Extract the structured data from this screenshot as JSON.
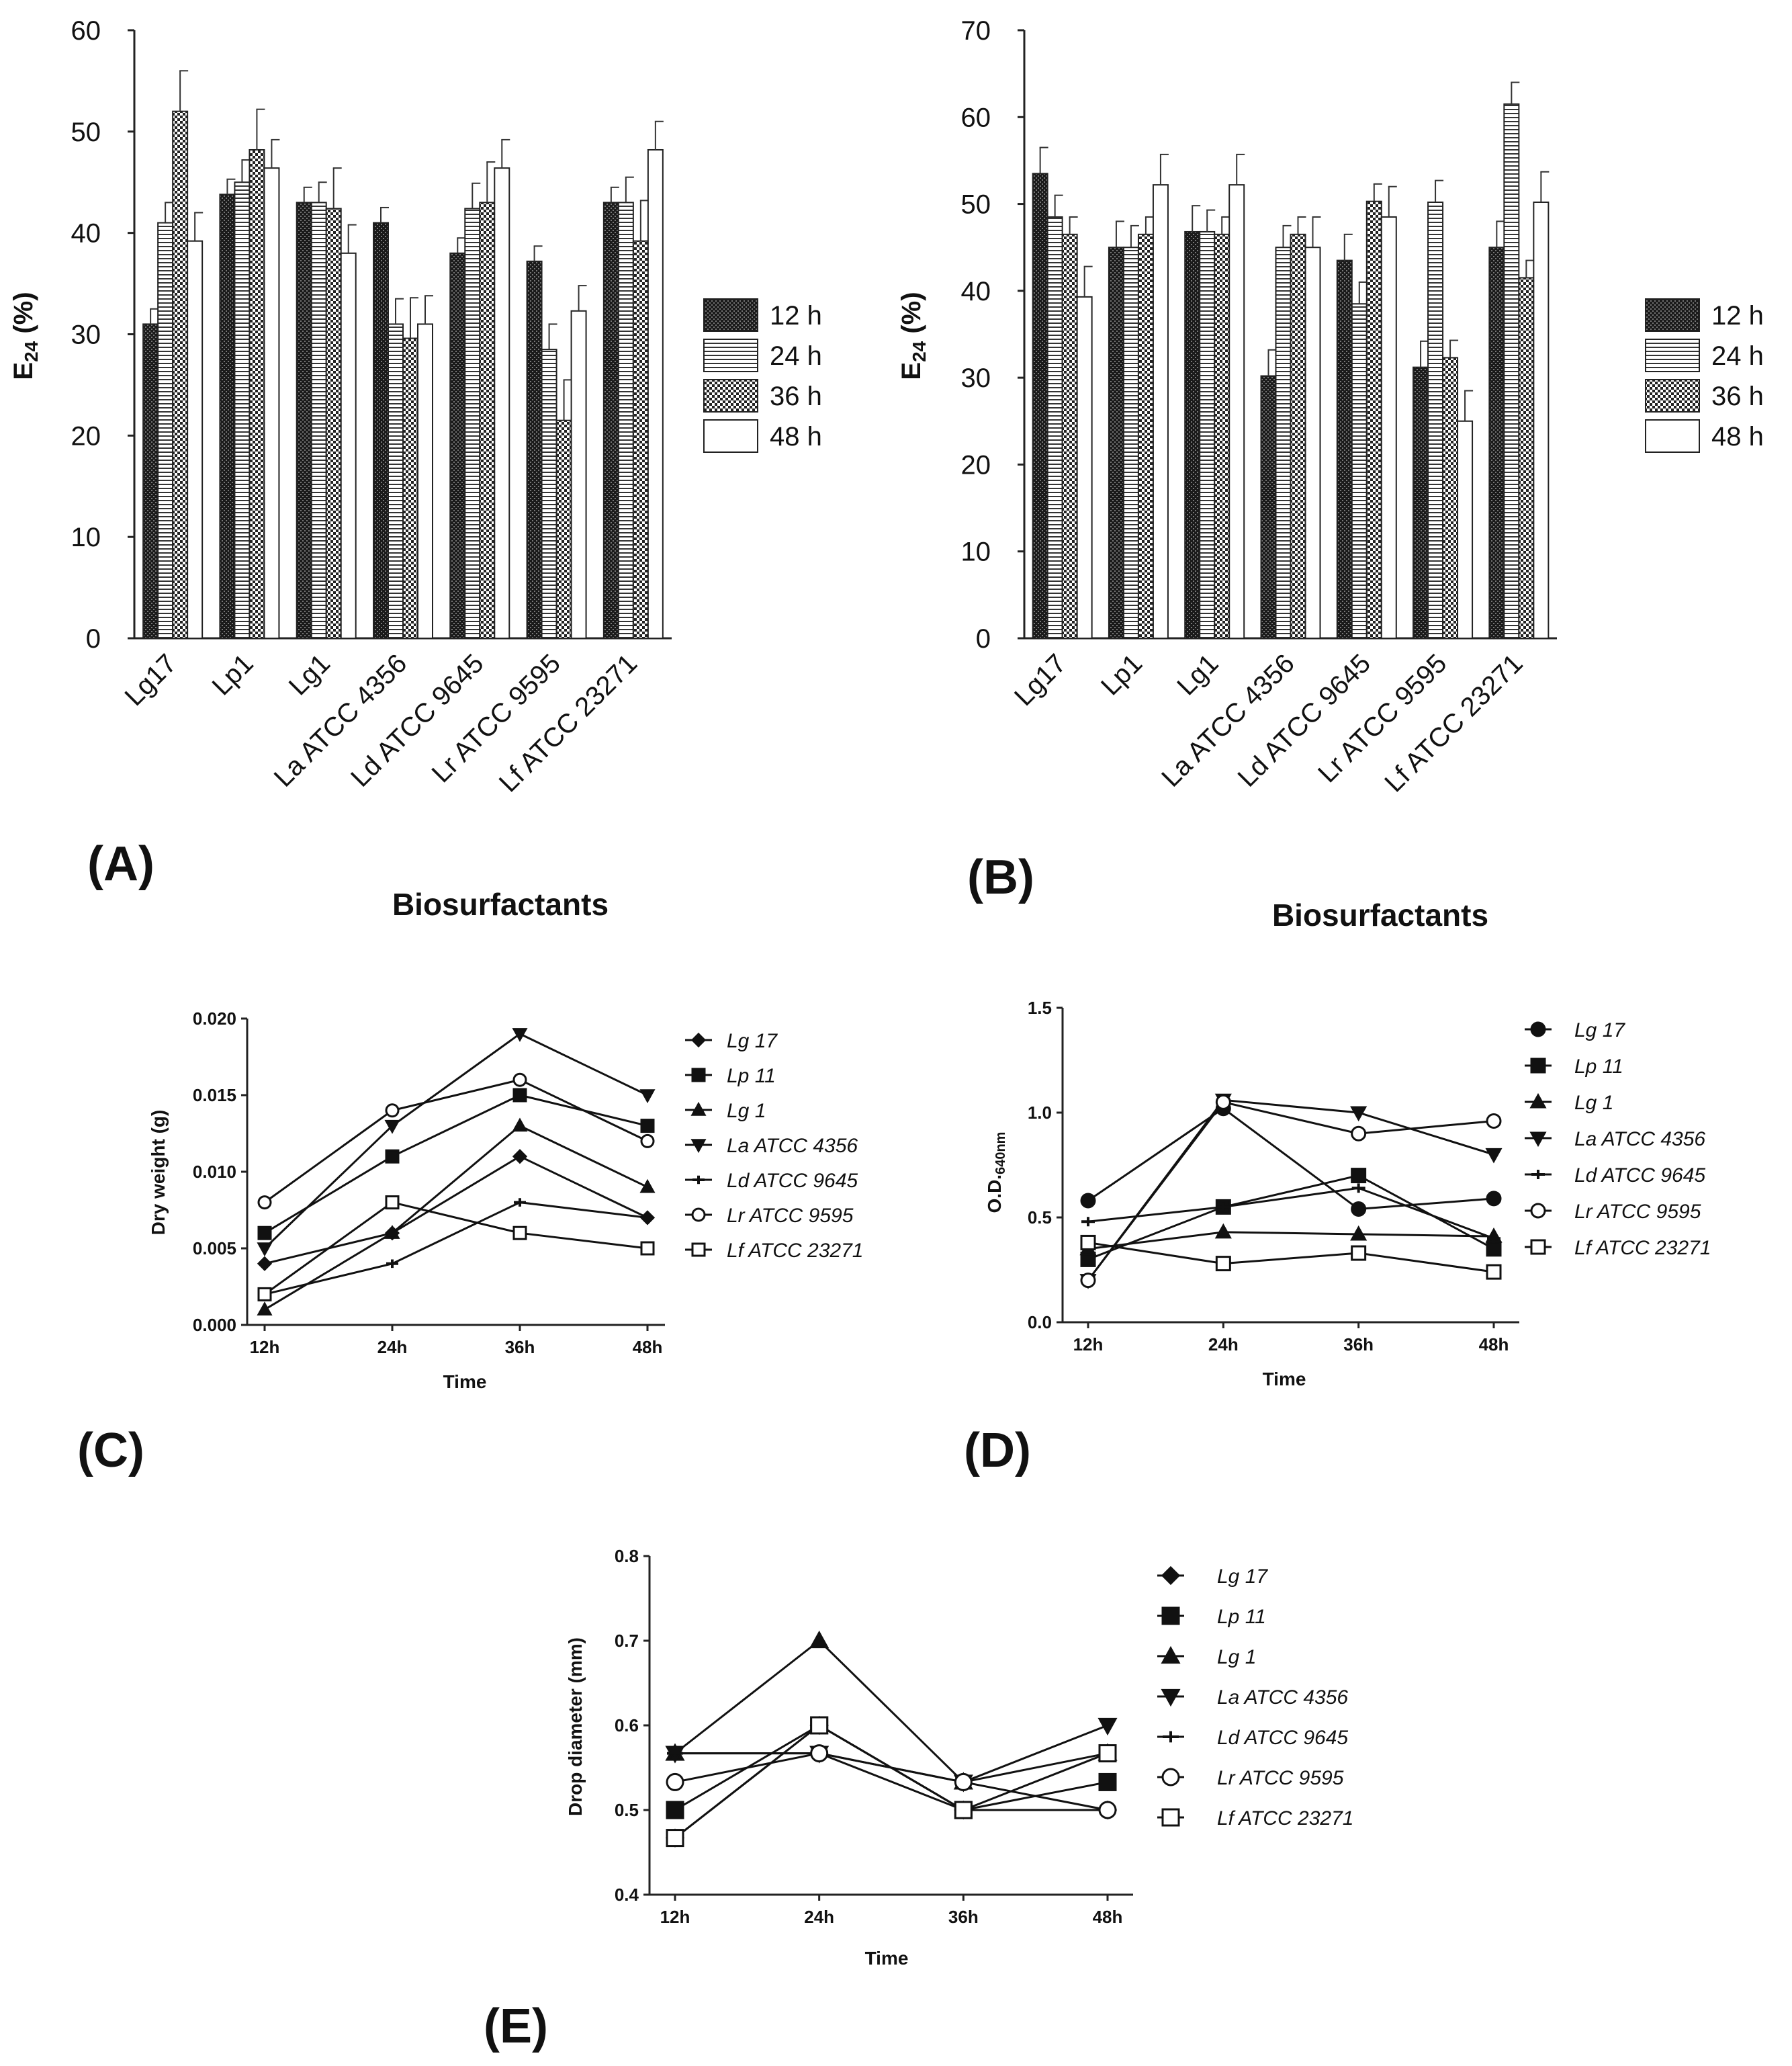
{
  "titles": {
    "c": "Biosurfactants",
    "d": "Biosurfactants"
  },
  "chart_data": [
    {
      "panel": "A",
      "type": "bar",
      "label": "(A)",
      "ylabel": "E24 (%)",
      "ylim": [
        0,
        60
      ],
      "yticks": [
        0,
        10,
        20,
        30,
        40,
        50,
        60
      ],
      "categories": [
        "Lg17",
        "Lp1",
        "Lg1",
        "La ATCC 4356",
        "Ld ATCC 9645",
        "Lr ATCC 9595",
        "Lf ATCC 23271"
      ],
      "series": [
        {
          "name": "12 h",
          "values": [
            31,
            43.8,
            43,
            41,
            38,
            37.2,
            43
          ],
          "errors": [
            1.5,
            1.5,
            1.5,
            1.5,
            1.5,
            1.5,
            1.5
          ]
        },
        {
          "name": "24 h",
          "values": [
            41,
            45,
            43,
            31,
            42.4,
            28.5,
            43
          ],
          "errors": [
            2,
            2.2,
            2,
            2.5,
            2.5,
            2.5,
            2.5
          ]
        },
        {
          "name": "36 h",
          "values": [
            52,
            48.2,
            42.4,
            29.6,
            43,
            21.5,
            39.2
          ],
          "errors": [
            4,
            4,
            4,
            4,
            4,
            4,
            4
          ]
        },
        {
          "name": "48 h",
          "values": [
            39.2,
            46.4,
            38,
            31,
            46.4,
            32.3,
            48.2
          ],
          "errors": [
            2.8,
            2.8,
            2.8,
            2.8,
            2.8,
            2.5,
            2.8
          ]
        }
      ]
    },
    {
      "panel": "B",
      "type": "bar",
      "label": "(B)",
      "ylabel": "E24 (%)",
      "ylim": [
        0,
        70
      ],
      "yticks": [
        0,
        10,
        20,
        30,
        40,
        50,
        60,
        70
      ],
      "categories": [
        "Lg17",
        "Lp1",
        "Lg1",
        "La ATCC 4356",
        "Ld ATCC 9645",
        "Lr ATCC 9595",
        "Lf ATCC 23271"
      ],
      "series": [
        {
          "name": "12 h",
          "values": [
            53.5,
            45,
            46.8,
            30.2,
            43.5,
            31.2,
            45
          ],
          "errors": [
            3,
            3,
            3,
            3,
            3,
            3,
            3
          ]
        },
        {
          "name": "24 h",
          "values": [
            48.5,
            45,
            46.8,
            45,
            38.5,
            50.2,
            61.5
          ],
          "errors": [
            2.5,
            2.5,
            2.5,
            2.5,
            2.5,
            2.5,
            2.5
          ]
        },
        {
          "name": "36 h",
          "values": [
            46.5,
            46.5,
            46.5,
            46.5,
            50.3,
            32.3,
            41.5
          ],
          "errors": [
            2,
            2,
            2,
            2,
            2,
            2,
            2
          ]
        },
        {
          "name": "48 h",
          "values": [
            39.3,
            52.2,
            52.2,
            45,
            48.5,
            25,
            50.2
          ],
          "errors": [
            3.5,
            3.5,
            3.5,
            3.5,
            3.5,
            3.5,
            3.5
          ]
        }
      ]
    },
    {
      "panel": "C",
      "type": "line",
      "label": "(C)",
      "ylabel": "Dry weight (g)",
      "xlabel": "Time",
      "ylim": [
        0,
        0.02
      ],
      "yticks": [
        "0.000",
        "0.005",
        "0.010",
        "0.015",
        "0.020"
      ],
      "x": [
        "12h",
        "24h",
        "36h",
        "48h"
      ],
      "series": [
        {
          "name": "Lg 17",
          "marker": "diamond",
          "values": [
            0.004,
            0.006,
            0.011,
            0.007
          ]
        },
        {
          "name": "Lp 11",
          "marker": "square",
          "values": [
            0.006,
            0.011,
            0.015,
            0.013
          ]
        },
        {
          "name": "Lg 1",
          "marker": "triangle-up",
          "values": [
            0.001,
            0.006,
            0.013,
            0.009
          ]
        },
        {
          "name": "La ATCC 4356",
          "marker": "triangle-down",
          "values": [
            0.005,
            0.013,
            0.019,
            0.015
          ]
        },
        {
          "name": "Ld ATCC 9645",
          "marker": "plus",
          "values": [
            0.002,
            0.004,
            0.008,
            0.007
          ]
        },
        {
          "name": "Lr ATCC 9595",
          "marker": "circle-open",
          "values": [
            0.008,
            0.014,
            0.016,
            0.012
          ]
        },
        {
          "name": "Lf ATCC 23271",
          "marker": "square-open",
          "values": [
            0.002,
            0.008,
            0.006,
            0.005
          ]
        }
      ]
    },
    {
      "panel": "D",
      "type": "line",
      "label": "(D)",
      "ylabel": "O.D.640nm",
      "xlabel": "Time",
      "ylim": [
        0,
        1.5
      ],
      "yticks": [
        "0.0",
        "0.5",
        "1.0",
        "1.5"
      ],
      "x": [
        "12h",
        "24h",
        "36h",
        "48h"
      ],
      "series": [
        {
          "name": "Lg 17",
          "marker": "circle",
          "values": [
            0.58,
            1.02,
            0.54,
            0.59
          ]
        },
        {
          "name": "Lp 11",
          "marker": "square",
          "values": [
            0.3,
            0.55,
            0.7,
            0.35
          ]
        },
        {
          "name": "Lg 1",
          "marker": "triangle-up",
          "values": [
            0.35,
            0.43,
            0.42,
            0.41
          ]
        },
        {
          "name": "La ATCC 4356",
          "marker": "triangle-down",
          "values": [
            0.2,
            1.06,
            1.0,
            0.8
          ]
        },
        {
          "name": "Ld ATCC 9645",
          "marker": "plus",
          "values": [
            0.48,
            0.55,
            0.64,
            0.4
          ]
        },
        {
          "name": "Lr ATCC 9595",
          "marker": "circle-open",
          "values": [
            0.2,
            1.05,
            0.9,
            0.96
          ]
        },
        {
          "name": "Lf ATCC 23271",
          "marker": "square-open",
          "values": [
            0.38,
            0.28,
            0.33,
            0.24
          ]
        }
      ]
    },
    {
      "panel": "E",
      "type": "line",
      "label": "(E)",
      "ylabel": "Drop diameter (mm)",
      "xlabel": "Time",
      "ylim": [
        0.4,
        0.8
      ],
      "yticks": [
        "0.4",
        "0.5",
        "0.6",
        "0.7",
        "0.8"
      ],
      "x": [
        "12h",
        "24h",
        "36h",
        "48h"
      ],
      "series": [
        {
          "name": "Lg 17",
          "marker": "diamond",
          "values": [
            0.467,
            0.6,
            0.5,
            0.5
          ]
        },
        {
          "name": "Lp 11",
          "marker": "square",
          "values": [
            0.5,
            0.6,
            0.5,
            0.533
          ]
        },
        {
          "name": "Lg 1",
          "marker": "triangle-up",
          "values": [
            0.567,
            0.7,
            0.533,
            0.567
          ]
        },
        {
          "name": "La ATCC 4356",
          "marker": "triangle-down",
          "values": [
            0.567,
            0.567,
            0.533,
            0.6
          ]
        },
        {
          "name": "Ld ATCC 9645",
          "marker": "plus",
          "values": [
            0.567,
            0.567,
            0.5,
            0.5
          ]
        },
        {
          "name": "Lr ATCC 9595",
          "marker": "circle-open",
          "values": [
            0.533,
            0.567,
            0.533,
            0.5
          ]
        },
        {
          "name": "Lf ATCC 23271",
          "marker": "square-open",
          "values": [
            0.467,
            0.6,
            0.5,
            0.567
          ]
        }
      ]
    }
  ]
}
